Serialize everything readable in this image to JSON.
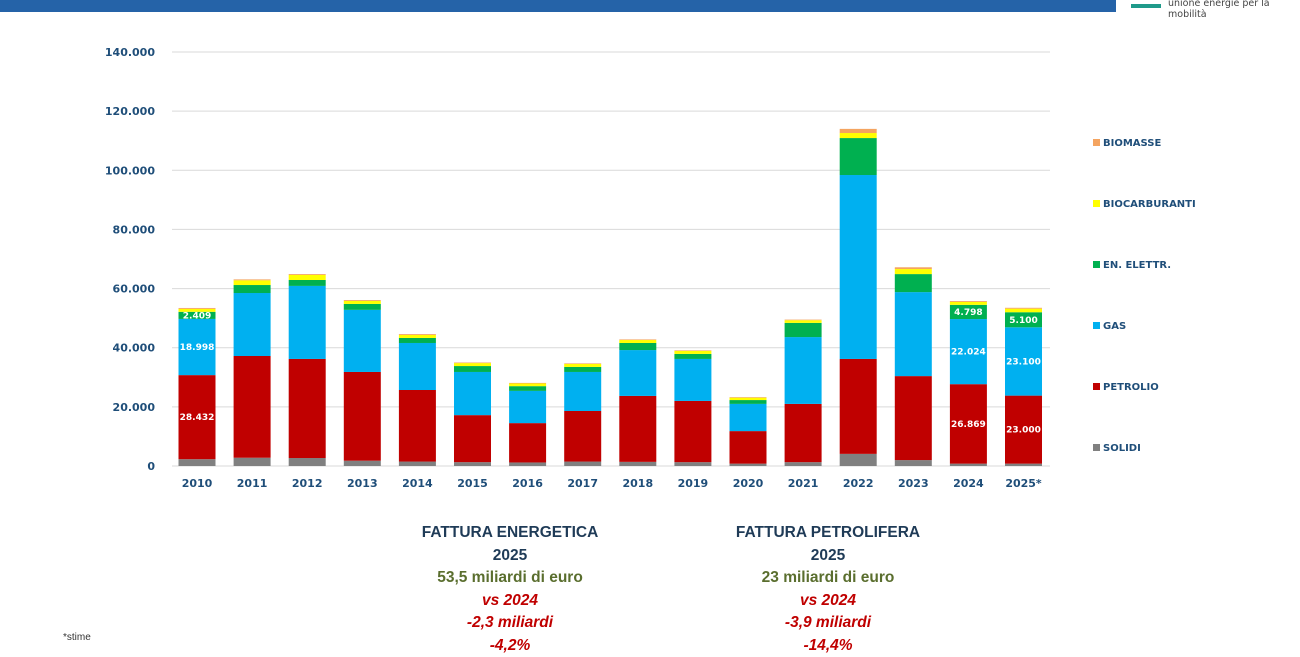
{
  "header": {
    "logo_tagline": "unione energie per la mobilità"
  },
  "chart_data": {
    "type": "bar",
    "stacked": true,
    "title": "",
    "xlabel": "",
    "ylabel": "",
    "ylim": [
      0,
      140000
    ],
    "yticks": [
      "0",
      "20.000",
      "40.000",
      "60.000",
      "80.000",
      "100.000",
      "120.000",
      "140.000"
    ],
    "ytick_values": [
      0,
      20000,
      40000,
      60000,
      80000,
      100000,
      120000,
      140000
    ],
    "grid": true,
    "legend_position": "right",
    "categories": [
      "2010",
      "2011",
      "2012",
      "2013",
      "2014",
      "2015",
      "2016",
      "2017",
      "2018",
      "2019",
      "2020",
      "2021",
      "2022",
      "2023",
      "2024",
      "2025*"
    ],
    "series": [
      {
        "name": "SOLIDI",
        "color": "#808080",
        "values": [
          2300,
          2800,
          2700,
          1800,
          1500,
          1300,
          1200,
          1500,
          1400,
          1300,
          800,
          1300,
          4100,
          2000,
          800,
          800
        ]
      },
      {
        "name": "PETROLIO",
        "color": "#c00000",
        "values": [
          28432,
          34400,
          33500,
          30000,
          24200,
          15900,
          13300,
          17100,
          22300,
          20700,
          11000,
          19700,
          32100,
          28400,
          26869,
          23000
        ]
      },
      {
        "name": "GAS",
        "color": "#00b0f0",
        "values": [
          18998,
          21300,
          24700,
          21000,
          15900,
          14600,
          10900,
          13200,
          15500,
          14200,
          9200,
          22600,
          62200,
          28400,
          22024,
          23100
        ]
      },
      {
        "name": "EN. ELETTR.",
        "color": "#00b050",
        "values": [
          2409,
          2700,
          2000,
          2000,
          1700,
          2000,
          1600,
          1700,
          2400,
          1700,
          1300,
          4800,
          12500,
          6100,
          4798,
          5100
        ]
      },
      {
        "name": "BIOCARBURANTI",
        "color": "#ffff00",
        "values": [
          1000,
          1600,
          1700,
          1000,
          1000,
          1000,
          900,
          1000,
          1000,
          1000,
          800,
          900,
          1700,
          1700,
          1000,
          1200
        ]
      },
      {
        "name": "BIOMASSE",
        "color": "#f4a460",
        "values": [
          300,
          300,
          300,
          300,
          300,
          200,
          200,
          200,
          200,
          200,
          200,
          200,
          1400,
          600,
          300,
          300
        ]
      }
    ],
    "data_labels": [
      {
        "series": "PETROLIO",
        "category": "2010",
        "text": "28.432"
      },
      {
        "series": "GAS",
        "category": "2010",
        "text": "18.998"
      },
      {
        "series": "EN. ELETTR.",
        "category": "2010",
        "text": "2.409"
      },
      {
        "series": "PETROLIO",
        "category": "2024",
        "text": "26.869"
      },
      {
        "series": "GAS",
        "category": "2024",
        "text": "22.024"
      },
      {
        "series": "EN. ELETTR.",
        "category": "2024",
        "text": "4.798"
      },
      {
        "series": "PETROLIO",
        "category": "2025*",
        "text": "23.000"
      },
      {
        "series": "GAS",
        "category": "2025*",
        "text": "23.100"
      },
      {
        "series": "EN. ELETTR.",
        "category": "2025*",
        "text": "5.100"
      }
    ],
    "legend_order": [
      "BIOMASSE",
      "BIOCARBURANTI",
      "EN. ELETTR.",
      "GAS",
      "PETROLIO",
      "SOLIDI"
    ]
  },
  "summary": {
    "energetica": {
      "title": "FATTURA ENERGETICA",
      "year": "2025",
      "amount": "53,5 miliardi di euro",
      "vs": "vs 2024",
      "delta": "-2,3 miliardi",
      "pct": "-4,2%"
    },
    "petrolifera": {
      "title": "FATTURA PETROLIFERA",
      "year": "2025",
      "amount": "23 miliardi di euro",
      "vs": "vs 2024",
      "delta": "-3,9 miliardi",
      "pct": "-14,4%"
    }
  },
  "footnote": "*stime"
}
